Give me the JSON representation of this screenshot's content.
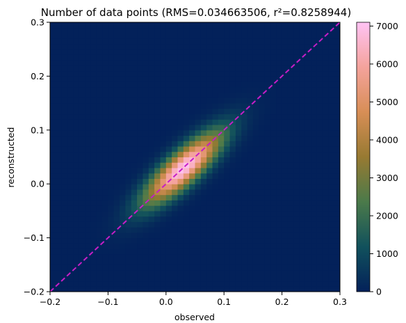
{
  "chart_data": {
    "type": "heatmap",
    "title": "Number of data points (RMS=0.034663506, r²=0.8258944)",
    "xlabel": "observed",
    "ylabel": "reconstructed",
    "xlim": [
      -0.2,
      0.3
    ],
    "ylim": [
      -0.2,
      0.3
    ],
    "x_ticks": [
      {
        "value": -0.2,
        "label": "−0.2"
      },
      {
        "value": -0.1,
        "label": "−0.1"
      },
      {
        "value": 0.0,
        "label": "0.0"
      },
      {
        "value": 0.1,
        "label": "0.1"
      },
      {
        "value": 0.2,
        "label": "0.2"
      },
      {
        "value": 0.3,
        "label": "0.3"
      }
    ],
    "y_ticks": [
      {
        "value": -0.2,
        "label": "−0.2"
      },
      {
        "value": -0.1,
        "label": "−0.1"
      },
      {
        "value": 0.0,
        "label": "0.0"
      },
      {
        "value": 0.1,
        "label": "0.1"
      },
      {
        "value": 0.2,
        "label": "0.2"
      },
      {
        "value": 0.3,
        "label": "0.3"
      }
    ],
    "grid": false,
    "bins": 50,
    "density_peak": {
      "x": 0.03,
      "y": 0.03,
      "count": 7050
    },
    "identity_line": {
      "from": [
        -0.2,
        -0.2
      ],
      "to": [
        0.3,
        0.3
      ],
      "style": "dashed",
      "color": "#c71ec7"
    },
    "colorbar": {
      "min": 0,
      "max": 7100,
      "ticks": [
        {
          "value": 0,
          "label": "0"
        },
        {
          "value": 1000,
          "label": "1000"
        },
        {
          "value": 2000,
          "label": "2000"
        },
        {
          "value": 3000,
          "label": "3000"
        },
        {
          "value": 4000,
          "label": "4000"
        },
        {
          "value": 5000,
          "label": "5000"
        },
        {
          "value": 6000,
          "label": "6000"
        },
        {
          "value": 7000,
          "label": "7000"
        }
      ],
      "colormap": "cubehelix-like",
      "color_stops": [
        "#03215a",
        "#11515c",
        "#4b7a4a",
        "#977a32",
        "#d88e56",
        "#f4a39c",
        "#ffc3f4"
      ]
    }
  }
}
